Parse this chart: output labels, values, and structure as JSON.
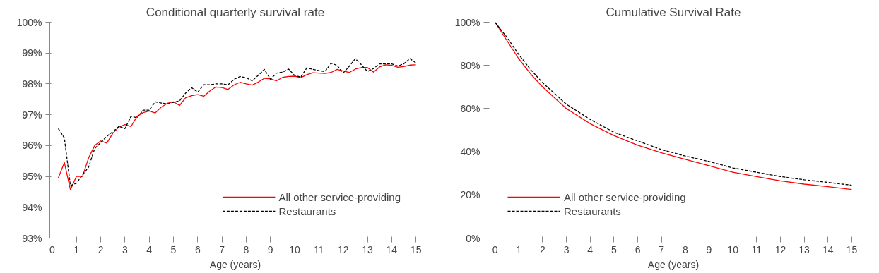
{
  "chart_data": [
    {
      "type": "line",
      "title": "Conditional quarterly survival rate",
      "xlabel": "Age (years)",
      "x": [
        0.25,
        0.5,
        0.75,
        1,
        1.25,
        1.5,
        1.75,
        2,
        2.25,
        2.5,
        2.75,
        3,
        3.25,
        3.5,
        3.75,
        4,
        4.25,
        4.5,
        4.75,
        5,
        5.25,
        5.5,
        5.75,
        6,
        6.25,
        6.5,
        6.75,
        7,
        7.25,
        7.5,
        7.75,
        8,
        8.25,
        8.5,
        8.75,
        9,
        9.25,
        9.5,
        9.75,
        10,
        10.25,
        10.5,
        10.75,
        11,
        11.25,
        11.5,
        11.75,
        12,
        12.25,
        12.5,
        12.75,
        13,
        13.25,
        13.5,
        13.75,
        14,
        14.25,
        14.5,
        14.75,
        15
      ],
      "series": [
        {
          "name": "All other service-providing",
          "color": "#ff0000",
          "line_style": "solid",
          "values": [
            94.95,
            95.45,
            94.57,
            95.0,
            95.0,
            95.6,
            96.0,
            96.15,
            96.08,
            96.4,
            96.6,
            96.68,
            96.62,
            96.95,
            97.07,
            97.12,
            97.06,
            97.25,
            97.37,
            97.42,
            97.3,
            97.55,
            97.62,
            97.65,
            97.6,
            97.77,
            97.9,
            97.88,
            97.82,
            97.97,
            98.05,
            98.0,
            97.96,
            98.06,
            98.18,
            98.16,
            98.1,
            98.21,
            98.24,
            98.25,
            98.2,
            98.3,
            98.36,
            98.35,
            98.34,
            98.37,
            98.47,
            98.42,
            98.37,
            98.48,
            98.53,
            98.53,
            98.38,
            98.55,
            98.62,
            98.6,
            98.54,
            98.56,
            98.61,
            98.62
          ]
        },
        {
          "name": "Restaurants",
          "color": "#000000",
          "line_style": "dashed",
          "values": [
            96.55,
            96.25,
            94.7,
            94.78,
            95.05,
            95.3,
            95.9,
            96.1,
            96.3,
            96.45,
            96.62,
            96.55,
            96.95,
            96.9,
            97.15,
            97.15,
            97.42,
            97.38,
            97.35,
            97.4,
            97.45,
            97.7,
            97.88,
            97.73,
            97.97,
            97.97,
            98.0,
            98.0,
            97.97,
            98.15,
            98.24,
            98.2,
            98.1,
            98.28,
            98.47,
            98.15,
            98.35,
            98.38,
            98.48,
            98.27,
            98.22,
            98.52,
            98.47,
            98.43,
            98.4,
            98.67,
            98.6,
            98.35,
            98.57,
            98.82,
            98.62,
            98.4,
            98.5,
            98.65,
            98.65,
            98.65,
            98.58,
            98.65,
            98.82,
            98.68
          ]
        }
      ],
      "xlim": [
        -0.1,
        15.2
      ],
      "xticks": [
        0,
        1,
        2,
        3,
        4,
        5,
        6,
        7,
        8,
        9,
        10,
        11,
        12,
        13,
        14,
        15
      ],
      "ylim": [
        93,
        100
      ],
      "yticks": [
        {
          "value": 93,
          "label": "93%"
        },
        {
          "value": 94,
          "label": "94%"
        },
        {
          "value": 95,
          "label": "95%"
        },
        {
          "value": 96,
          "label": "96%"
        },
        {
          "value": 97,
          "label": "97%"
        },
        {
          "value": 98,
          "label": "98%"
        },
        {
          "value": 99,
          "label": "99%"
        },
        {
          "value": 100,
          "label": "100%"
        }
      ],
      "grid": false,
      "legend": "bottom right"
    },
    {
      "type": "line",
      "title": "Cumulative Survival Rate",
      "xlabel": "Age (years)",
      "x": [
        0,
        0.5,
        1,
        1.5,
        2,
        3,
        4,
        5,
        6,
        7,
        8,
        9,
        10,
        11,
        12,
        13,
        14,
        15
      ],
      "series": [
        {
          "name": "All other service-providing",
          "color": "#ff0000",
          "line_style": "solid",
          "values": [
            100,
            91.5,
            83,
            76,
            70,
            60,
            53,
            47.5,
            43,
            39.5,
            36.5,
            33.5,
            30.5,
            28.5,
            26.5,
            25,
            23.8,
            22.5
          ]
        },
        {
          "name": "Restaurants",
          "color": "#000000",
          "line_style": "dashed",
          "values": [
            100,
            93,
            85,
            78,
            72,
            62,
            55,
            49,
            45,
            41,
            38,
            35.5,
            32.5,
            30.5,
            28.5,
            27,
            25.8,
            24.5
          ]
        }
      ],
      "xlim": [
        -0.3,
        15.3
      ],
      "xticks": [
        0,
        1,
        2,
        3,
        4,
        5,
        6,
        7,
        8,
        9,
        10,
        11,
        12,
        13,
        14,
        15
      ],
      "ylim": [
        0,
        100
      ],
      "yticks": [
        {
          "value": 0,
          "label": "0%"
        },
        {
          "value": 20,
          "label": "20%"
        },
        {
          "value": 40,
          "label": "40%"
        },
        {
          "value": 60,
          "label": "60%"
        },
        {
          "value": 80,
          "label": "80%"
        },
        {
          "value": 100,
          "label": "100%"
        }
      ],
      "grid": false,
      "legend": "bottom left"
    }
  ]
}
